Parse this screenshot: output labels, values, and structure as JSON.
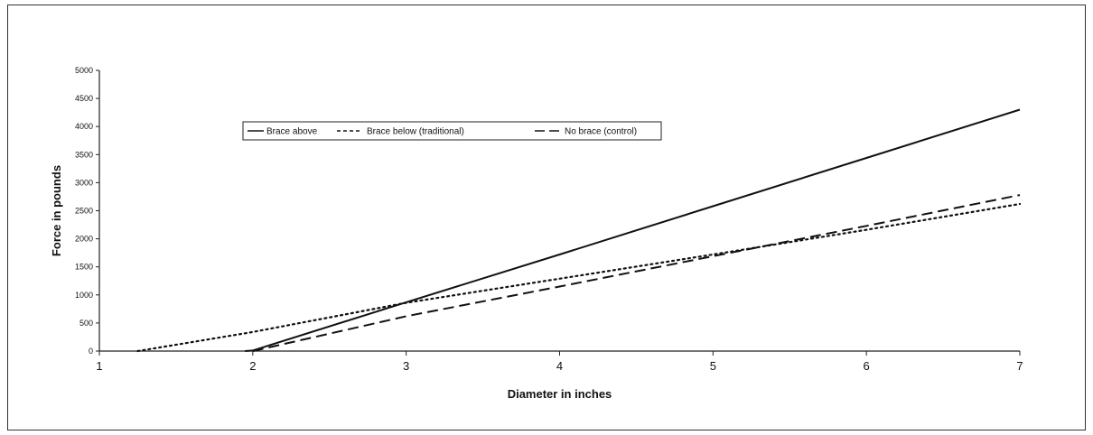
{
  "chart_data": {
    "type": "line",
    "title": "",
    "xlabel": "Diameter in inches",
    "ylabel": "Force in pounds",
    "xlim": [
      1,
      7
    ],
    "ylim": [
      0,
      5000
    ],
    "xticks": [
      1,
      2,
      3,
      4,
      5,
      6,
      7
    ],
    "yticks": [
      0,
      500,
      1000,
      1500,
      2000,
      2500,
      3000,
      3500,
      4000,
      4500,
      5000
    ],
    "grid": false,
    "legend_position": "top-left",
    "series": [
      {
        "name": "Brace above",
        "style": "solid",
        "color": "#111111",
        "points": [
          [
            1.95,
            0
          ],
          [
            2,
            10
          ],
          [
            3,
            870
          ],
          [
            4,
            1720
          ],
          [
            5,
            2580
          ],
          [
            6,
            3440
          ],
          [
            7,
            4300
          ]
        ]
      },
      {
        "name": "Brace below (traditional)",
        "style": "dotted",
        "color": "#111111",
        "points": [
          [
            1.25,
            0
          ],
          [
            2,
            340
          ],
          [
            3,
            860
          ],
          [
            4,
            1290
          ],
          [
            5,
            1720
          ],
          [
            6,
            2160
          ],
          [
            7,
            2620
          ]
        ]
      },
      {
        "name": "No brace (control)",
        "style": "dashed",
        "color": "#111111",
        "points": [
          [
            2,
            0
          ],
          [
            3,
            620
          ],
          [
            4,
            1150
          ],
          [
            5,
            1690
          ],
          [
            6,
            2230
          ],
          [
            7,
            2780
          ]
        ]
      }
    ]
  }
}
